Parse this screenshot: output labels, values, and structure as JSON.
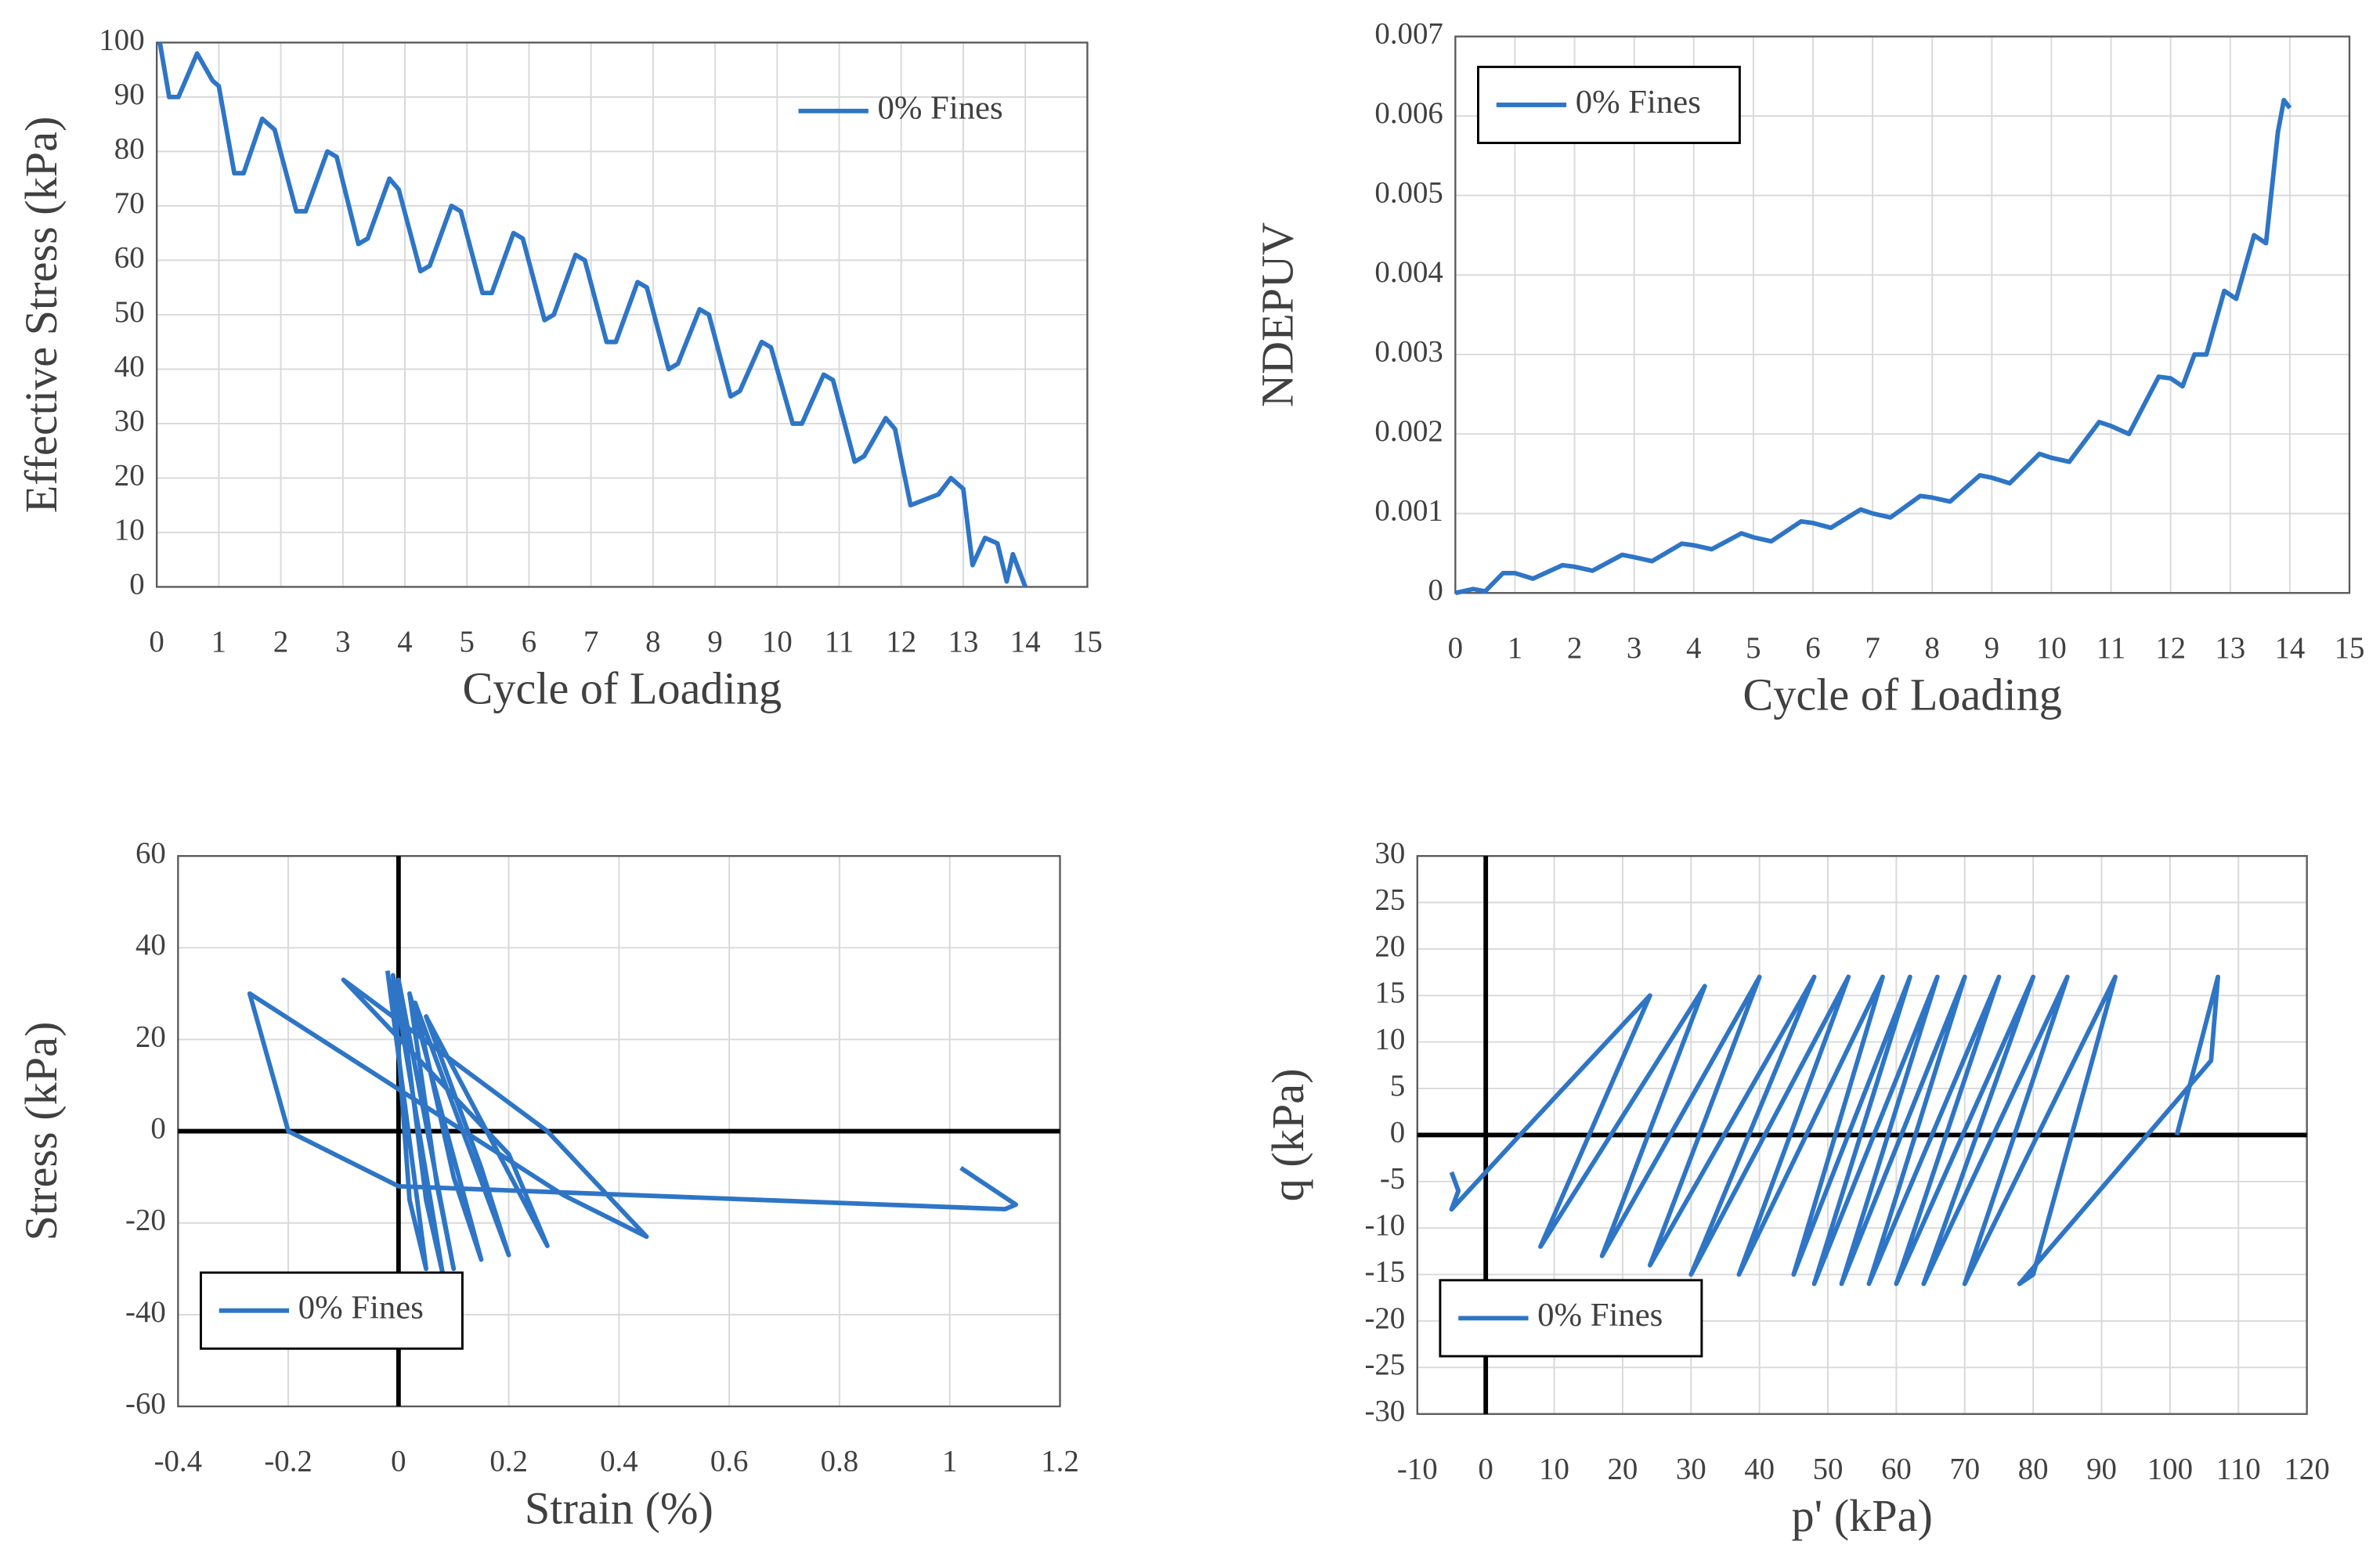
{
  "chart_data": [
    {
      "type": "line",
      "x_label": "Cycle of Loading",
      "y_label": "Effective Stress (kPa)",
      "x": [
        0.05,
        0.2,
        0.35,
        0.65,
        0.9,
        1.0,
        1.25,
        1.4,
        1.7,
        1.9,
        2.25,
        2.4,
        2.75,
        2.9,
        3.25,
        3.4,
        3.75,
        3.9,
        4.25,
        4.4,
        4.75,
        4.9,
        5.25,
        5.4,
        5.75,
        5.9,
        6.25,
        6.4,
        6.75,
        6.9,
        7.25,
        7.4,
        7.75,
        7.9,
        8.25,
        8.4,
        8.75,
        8.9,
        9.25,
        9.4,
        9.75,
        9.9,
        10.25,
        10.4,
        10.75,
        10.9,
        11.25,
        11.4,
        11.75,
        11.9,
        12.15,
        12.6,
        12.8,
        13.0,
        13.15,
        13.35,
        13.55,
        13.7,
        13.8,
        14.0
      ],
      "series": [
        {
          "name": "0% Fines",
          "color": "#2e75c6",
          "values": [
            100,
            90,
            90,
            98,
            93,
            92,
            76,
            76,
            86,
            84,
            69,
            69,
            80,
            79,
            63,
            64,
            75,
            73,
            58,
            59,
            70,
            69,
            54,
            54,
            65,
            64,
            49,
            50,
            61,
            60,
            45,
            45,
            56,
            55,
            40,
            41,
            51,
            50,
            35,
            36,
            45,
            44,
            30,
            30,
            39,
            38,
            23,
            24,
            31,
            29,
            15,
            17,
            20,
            18,
            4,
            9,
            8,
            1,
            6,
            0
          ]
        }
      ],
      "xlim": [
        0,
        15
      ],
      "ylim": [
        0,
        100
      ],
      "xticks": [
        0,
        1,
        2,
        3,
        4,
        5,
        6,
        7,
        8,
        9,
        10,
        11,
        12,
        13,
        14,
        15
      ],
      "yticks": [
        0,
        10,
        20,
        30,
        40,
        50,
        60,
        70,
        80,
        90,
        100
      ],
      "grid": true,
      "legend": "upper right",
      "zero_lines": false
    },
    {
      "type": "line",
      "x_label": "Cycle of Loading",
      "y_label": "NDEPUV",
      "x": [
        0,
        0.3,
        0.5,
        0.8,
        1.0,
        1.3,
        1.8,
        2.0,
        2.3,
        2.8,
        3.0,
        3.3,
        3.8,
        4.0,
        4.3,
        4.8,
        5.0,
        5.3,
        5.8,
        6.0,
        6.3,
        6.8,
        7.0,
        7.3,
        7.8,
        8.0,
        8.3,
        8.8,
        9.0,
        9.3,
        9.8,
        10.0,
        10.3,
        10.8,
        11.0,
        11.3,
        11.8,
        12.0,
        12.2,
        12.4,
        12.6,
        12.9,
        13.1,
        13.4,
        13.6,
        13.8,
        13.9,
        14.0
      ],
      "series": [
        {
          "name": "0% Fines",
          "color": "#2e75c6",
          "values": [
            0,
            5e-05,
            2e-05,
            0.00025,
            0.00025,
            0.00018,
            0.00035,
            0.00033,
            0.00028,
            0.00048,
            0.00045,
            0.0004,
            0.00062,
            0.0006,
            0.00055,
            0.00075,
            0.0007,
            0.00065,
            0.0009,
            0.00088,
            0.00082,
            0.00105,
            0.001,
            0.00095,
            0.00122,
            0.0012,
            0.00115,
            0.00148,
            0.00145,
            0.00138,
            0.00175,
            0.0017,
            0.00165,
            0.00215,
            0.0021,
            0.002,
            0.00272,
            0.0027,
            0.0026,
            0.003,
            0.003,
            0.0038,
            0.0037,
            0.0045,
            0.0044,
            0.0058,
            0.0062,
            0.0061
          ]
        }
      ],
      "xlim": [
        0,
        15
      ],
      "ylim": [
        0,
        0.007
      ],
      "xticks": [
        0,
        1,
        2,
        3,
        4,
        5,
        6,
        7,
        8,
        9,
        10,
        11,
        12,
        13,
        14,
        15
      ],
      "yticks": [
        0,
        0.001,
        0.002,
        0.003,
        0.004,
        0.005,
        0.006,
        0.007
      ],
      "grid": true,
      "legend": "upper left",
      "zero_lines": false
    },
    {
      "type": "line",
      "x_label": "Strain (%)",
      "y_label": "Stress (kPa)",
      "x": [
        -0.02,
        0.05,
        0.02,
        -0.01,
        0.08,
        0.05,
        0,
        0.1,
        0.07,
        0.02,
        0.15,
        0.1,
        0.03,
        0.2,
        0.15,
        0.05,
        0.27,
        0.2,
        -0.1,
        0.27,
        0.45,
        0.3,
        -0.27,
        -0.2,
        0,
        1.1,
        1.12,
        1.02
      ],
      "series": [
        {
          "name": "0% Fines",
          "color": "#2e75c6",
          "values": [
            35,
            -30,
            -15,
            34,
            -31,
            -15,
            33,
            -30,
            -12,
            30,
            -28,
            -10,
            28,
            -27,
            -8,
            25,
            -25,
            -5,
            33,
            0,
            -23,
            -14,
            30,
            0,
            -12,
            -17,
            -16,
            -8
          ]
        }
      ],
      "xlim": [
        -0.4,
        1.2
      ],
      "ylim": [
        -60,
        60
      ],
      "xticks": [
        -0.4,
        -0.2,
        0,
        0.2,
        0.4,
        0.6,
        0.8,
        1,
        1.2
      ],
      "yticks": [
        -60,
        -40,
        -20,
        0,
        20,
        40,
        60
      ],
      "grid": true,
      "legend": "lower left",
      "zero_lines": true
    },
    {
      "type": "line",
      "x_label": "p' (kPa)",
      "y_label": "q (kPa)",
      "x": [
        101,
        107,
        106,
        78,
        80,
        92,
        70,
        85,
        64,
        80,
        60,
        75,
        56,
        70,
        52,
        66,
        48,
        62,
        45,
        58,
        37,
        53,
        30,
        48,
        24,
        40,
        17,
        32,
        8,
        24,
        5,
        -5,
        -4,
        -5
      ],
      "series": [
        {
          "name": "0% Fines",
          "color": "#2e75c6",
          "values": [
            0,
            17,
            8,
            -16,
            -15,
            17,
            -16,
            17,
            -16,
            17,
            -16,
            17,
            -16,
            17,
            -16,
            17,
            -16,
            17,
            -15,
            17,
            -15,
            17,
            -15,
            17,
            -14,
            17,
            -13,
            16,
            -12,
            15,
            0,
            -8,
            -6,
            -4
          ]
        }
      ],
      "xlim": [
        -10,
        120
      ],
      "ylim": [
        -30,
        30
      ],
      "xticks": [
        -10,
        0,
        10,
        20,
        30,
        40,
        50,
        60,
        70,
        80,
        90,
        100,
        110,
        120
      ],
      "yticks": [
        -30,
        -25,
        -20,
        -15,
        -10,
        -5,
        0,
        5,
        10,
        15,
        20,
        25,
        30
      ],
      "grid": true,
      "legend": "lower left",
      "zero_lines": true
    }
  ]
}
